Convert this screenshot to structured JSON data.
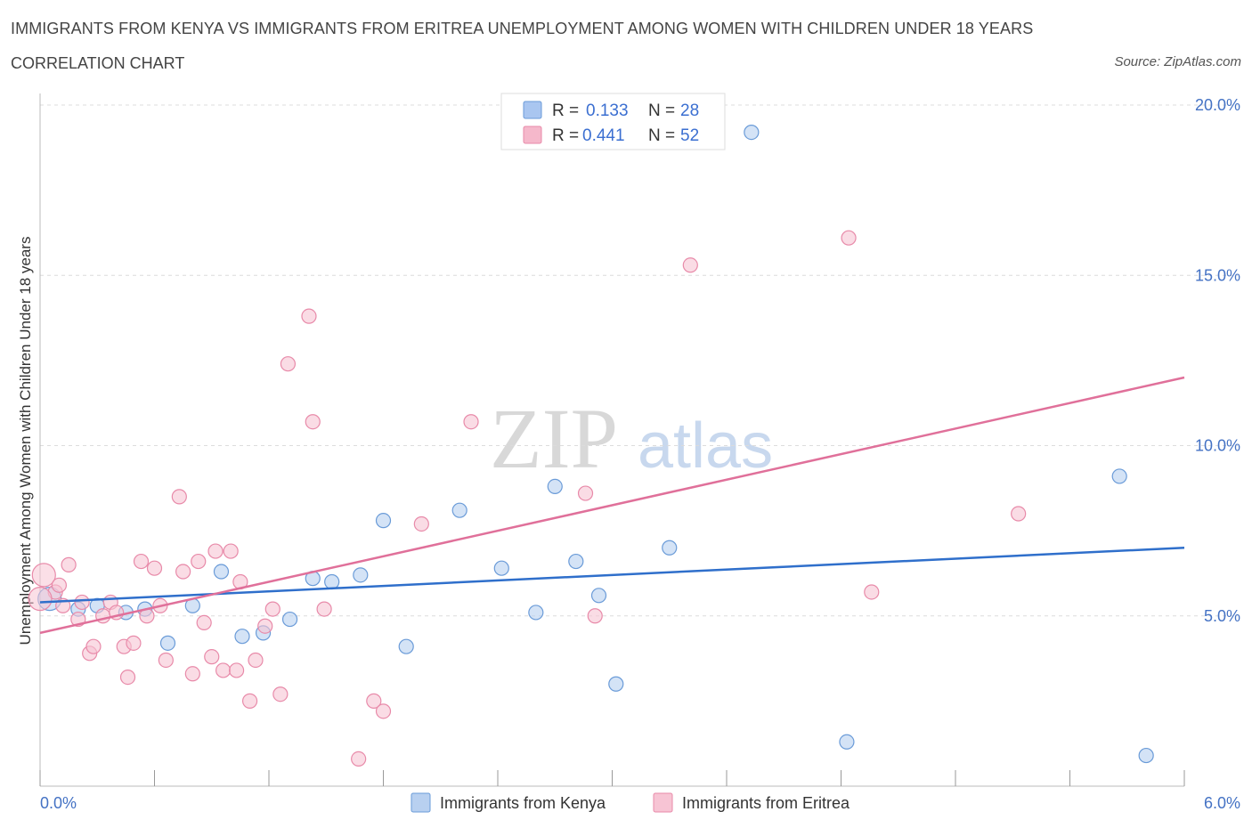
{
  "header": {
    "title": "IMMIGRANTS FROM KENYA VS IMMIGRANTS FROM ERITREA UNEMPLOYMENT AMONG WOMEN WITH CHILDREN UNDER 18 YEARS",
    "subtitle": "CORRELATION CHART",
    "source": "Source: ZipAtlas.com"
  },
  "watermark": {
    "part1": "ZIP",
    "part2": "atlas"
  },
  "stats_legend": {
    "rows": [
      {
        "r_label": "R =",
        "r_value": "0.133",
        "n_label": "N =",
        "n_value": "28",
        "color": "#a9c6f0"
      },
      {
        "r_label": "R =",
        "r_value": "0.441",
        "n_label": "N =",
        "n_value": "52",
        "color": "#f5b8cb"
      }
    ]
  },
  "chart_data": {
    "type": "scatter",
    "title": "IMMIGRANTS FROM KENYA VS IMMIGRANTS FROM ERITREA UNEMPLOYMENT AMONG WOMEN WITH CHILDREN UNDER 18 YEARS",
    "xlabel": "",
    "ylabel": "Unemployment Among Women with Children Under 18 years",
    "xlim": [
      0,
      6
    ],
    "ylim": [
      0,
      20
    ],
    "x_tick_labels": [
      "0.0%",
      "6.0%"
    ],
    "y_ticks": [
      5,
      10,
      15,
      20
    ],
    "y_tick_labels": [
      "5.0%",
      "10.0%",
      "15.0%",
      "20.0%"
    ],
    "grid": true,
    "legend_position": "bottom-center",
    "series": [
      {
        "name": "Immigrants from Kenya",
        "color": "#6a9bd8",
        "fill": "#b8d0f0",
        "line_color": "#2f6fcb",
        "trend": [
          [
            0,
            5.4
          ],
          [
            6,
            7.0
          ]
        ],
        "points": [
          [
            0.05,
            5.5
          ],
          [
            0.3,
            5.3
          ],
          [
            0.45,
            5.1
          ],
          [
            0.55,
            5.2
          ],
          [
            0.67,
            4.2
          ],
          [
            0.8,
            5.3
          ],
          [
            0.95,
            6.3
          ],
          [
            1.06,
            4.4
          ],
          [
            1.17,
            4.5
          ],
          [
            1.31,
            4.9
          ],
          [
            1.43,
            6.1
          ],
          [
            1.53,
            6.0
          ],
          [
            1.68,
            6.2
          ],
          [
            1.8,
            7.8
          ],
          [
            1.92,
            4.1
          ],
          [
            2.2,
            8.1
          ],
          [
            2.42,
            6.4
          ],
          [
            2.6,
            5.1
          ],
          [
            2.7,
            8.8
          ],
          [
            2.81,
            6.6
          ],
          [
            2.93,
            5.6
          ],
          [
            3.02,
            3.0
          ],
          [
            3.3,
            7.0
          ],
          [
            3.73,
            19.2
          ],
          [
            4.23,
            1.3
          ],
          [
            5.66,
            9.1
          ],
          [
            5.8,
            0.9
          ],
          [
            0.2,
            5.2
          ]
        ]
      },
      {
        "name": "Immigrants from Eritrea",
        "color": "#e88aa9",
        "fill": "#f7c4d4",
        "line_color": "#e0709a",
        "trend": [
          [
            0,
            4.5
          ],
          [
            6,
            12.0
          ]
        ],
        "points": [
          [
            0.02,
            6.2
          ],
          [
            0.08,
            5.7
          ],
          [
            0.1,
            5.9
          ],
          [
            0.12,
            5.3
          ],
          [
            0.15,
            6.5
          ],
          [
            0.2,
            4.9
          ],
          [
            0.22,
            5.4
          ],
          [
            0.26,
            3.9
          ],
          [
            0.28,
            4.1
          ],
          [
            0.33,
            5.0
          ],
          [
            0.37,
            5.4
          ],
          [
            0.4,
            5.1
          ],
          [
            0.44,
            4.1
          ],
          [
            0.46,
            3.2
          ],
          [
            0.49,
            4.2
          ],
          [
            0.53,
            6.6
          ],
          [
            0.56,
            5.0
          ],
          [
            0.6,
            6.4
          ],
          [
            0.63,
            5.3
          ],
          [
            0.66,
            3.7
          ],
          [
            0.73,
            8.5
          ],
          [
            0.75,
            6.3
          ],
          [
            0.8,
            3.3
          ],
          [
            0.83,
            6.6
          ],
          [
            0.86,
            4.8
          ],
          [
            0.9,
            3.8
          ],
          [
            0.92,
            6.9
          ],
          [
            0.96,
            3.4
          ],
          [
            1.0,
            6.9
          ],
          [
            1.03,
            3.4
          ],
          [
            1.05,
            6.0
          ],
          [
            1.1,
            2.5
          ],
          [
            1.13,
            3.7
          ],
          [
            1.18,
            4.7
          ],
          [
            1.22,
            5.2
          ],
          [
            1.26,
            2.7
          ],
          [
            1.3,
            12.4
          ],
          [
            1.41,
            13.8
          ],
          [
            1.43,
            10.7
          ],
          [
            1.49,
            5.2
          ],
          [
            1.67,
            0.8
          ],
          [
            1.75,
            2.5
          ],
          [
            1.8,
            2.2
          ],
          [
            2.0,
            7.7
          ],
          [
            2.26,
            10.7
          ],
          [
            2.86,
            8.6
          ],
          [
            2.91,
            5.0
          ],
          [
            3.41,
            15.3
          ],
          [
            4.24,
            16.1
          ],
          [
            4.36,
            5.7
          ],
          [
            5.13,
            8.0
          ],
          [
            0.0,
            5.5
          ]
        ]
      }
    ]
  },
  "bottom_legend": {
    "items": [
      {
        "label": "Immigrants from Kenya",
        "color": "#b8d0f0",
        "border": "#6a9bd8"
      },
      {
        "label": "Immigrants from Eritrea",
        "color": "#f7c4d4",
        "border": "#e88aa9"
      }
    ]
  }
}
